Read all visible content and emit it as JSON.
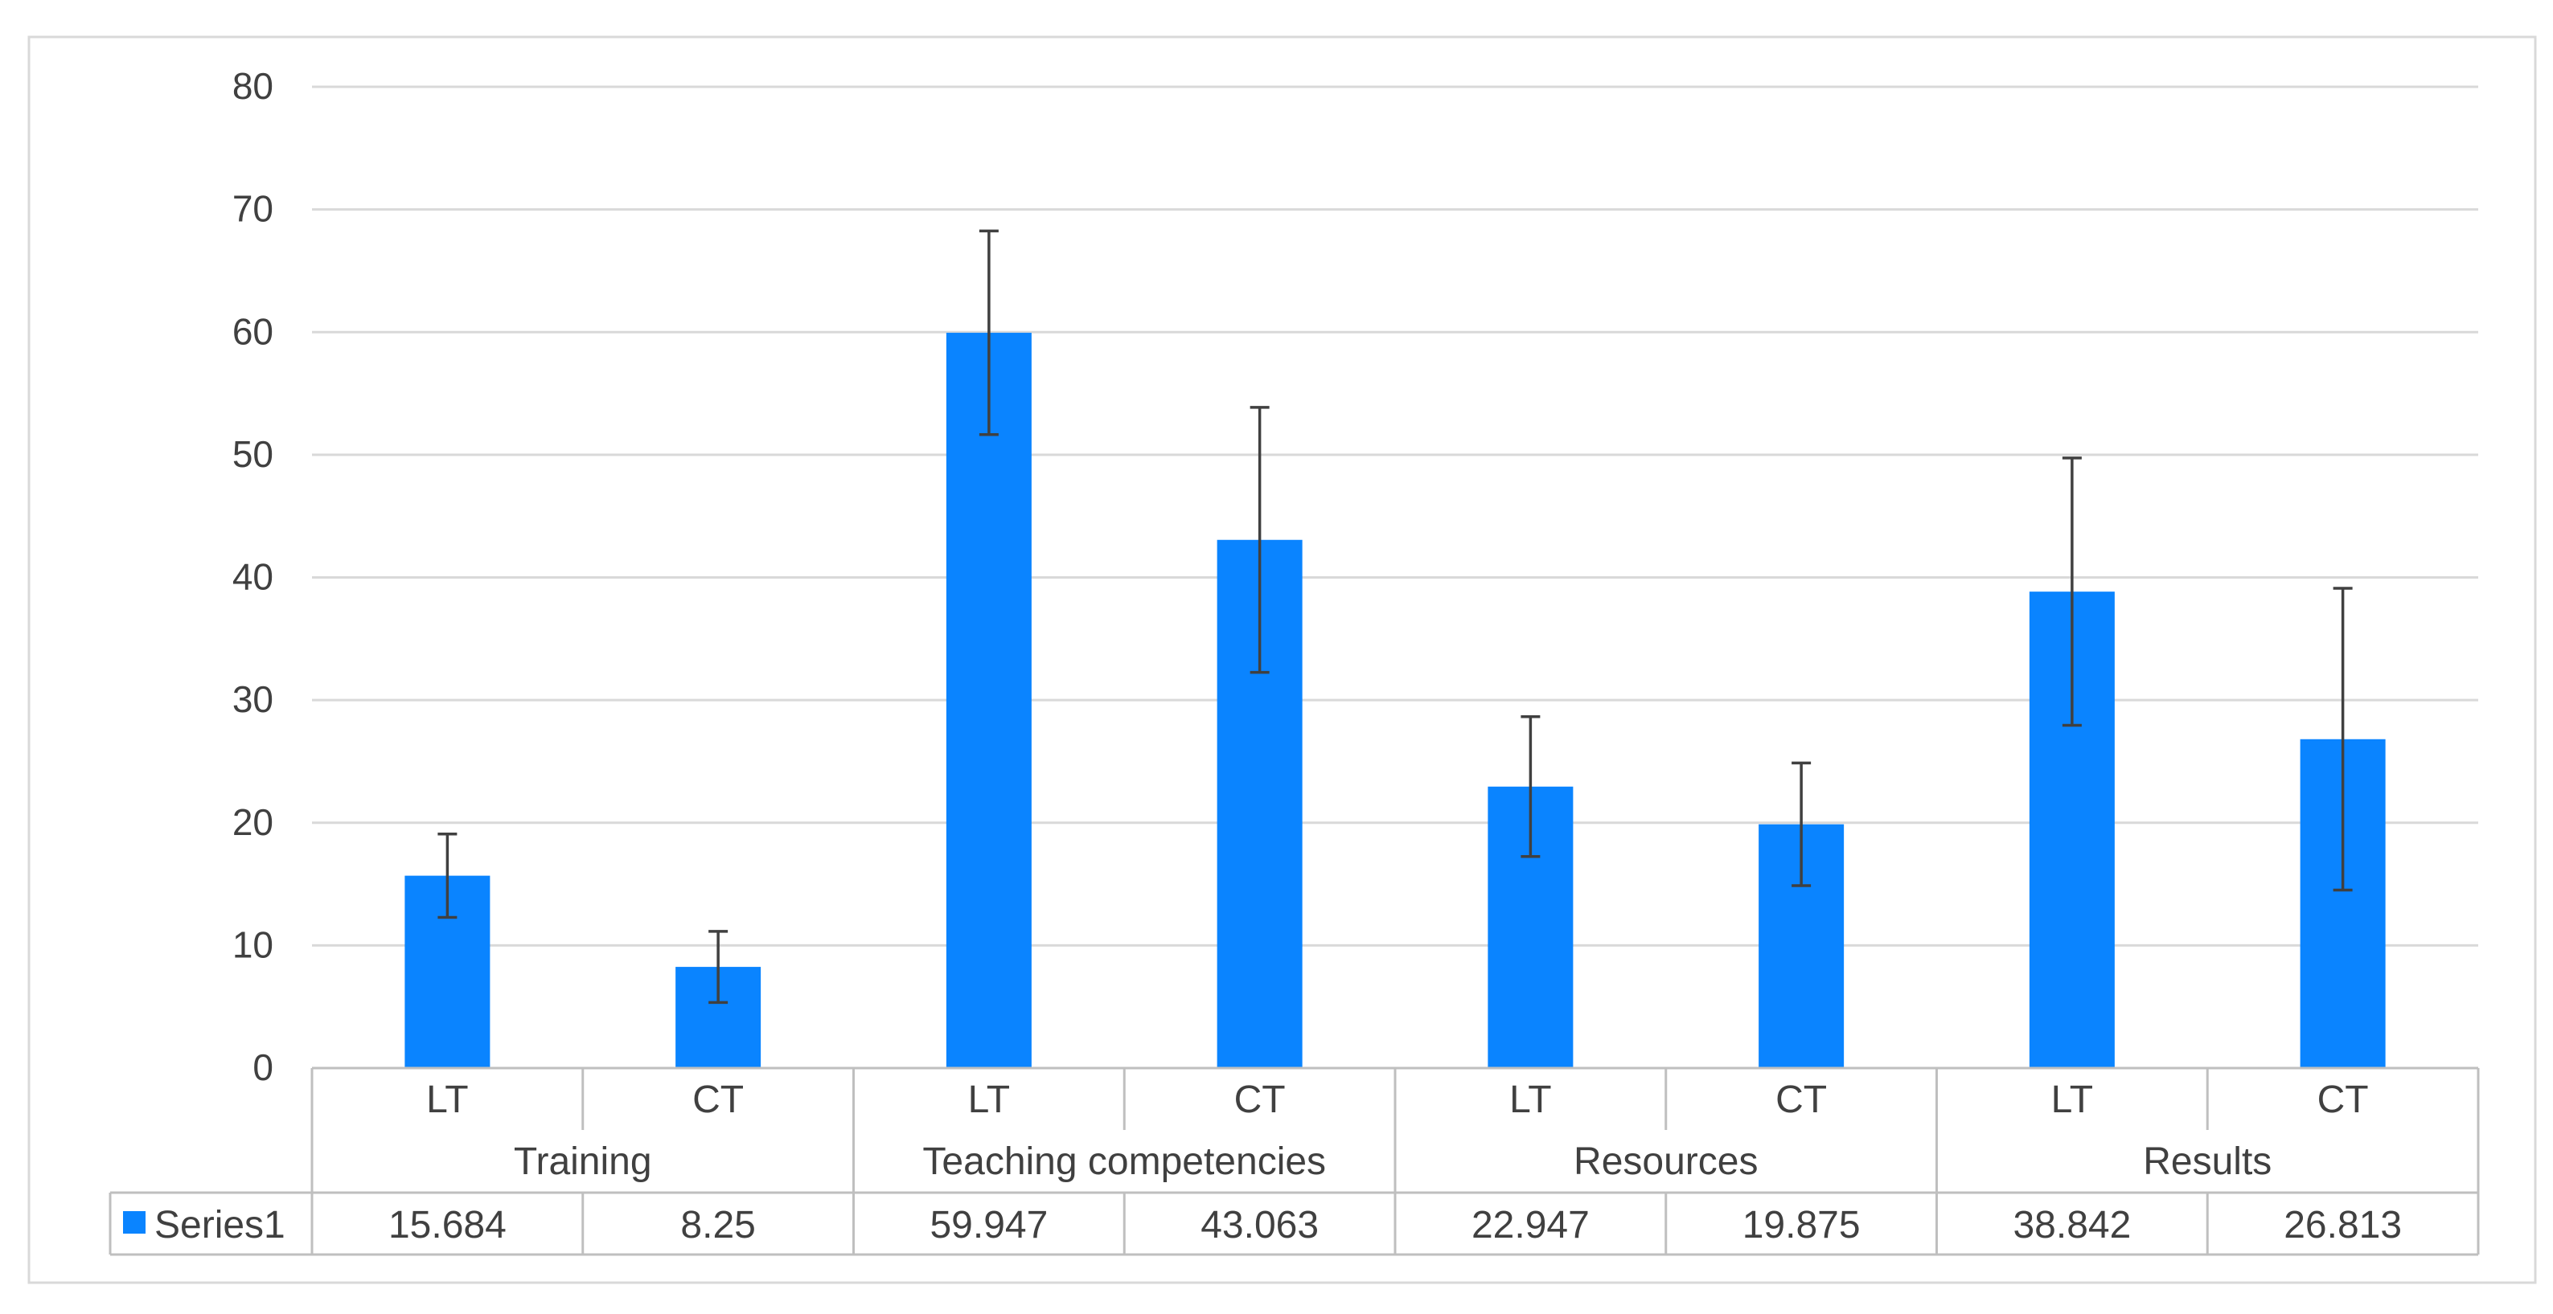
{
  "chart_data": {
    "type": "bar",
    "title": "",
    "xlabel": "",
    "ylabel": "",
    "ylim": [
      0,
      80
    ],
    "yticks": [
      0,
      10,
      20,
      30,
      40,
      50,
      60,
      70,
      80
    ],
    "grid": true,
    "legend_placement": "data-table-left",
    "groups": [
      {
        "label": "Training",
        "categories": [
          "LT",
          "CT"
        ]
      },
      {
        "label": "Teaching competencies",
        "categories": [
          "LT",
          "CT"
        ]
      },
      {
        "label": "Resources",
        "categories": [
          "LT",
          "CT"
        ]
      },
      {
        "label": "Results",
        "categories": [
          "LT",
          "CT"
        ]
      }
    ],
    "categories": [
      "LT",
      "CT",
      "LT",
      "CT",
      "LT",
      "CT",
      "LT",
      "CT"
    ],
    "series": [
      {
        "name": "Series1",
        "color": "#0A84FF",
        "values": [
          15.684,
          8.25,
          59.947,
          43.063,
          22.947,
          19.875,
          38.842,
          26.813
        ],
        "value_labels": [
          "15.684",
          "8.25",
          "59.947",
          "43.063",
          "22.947",
          "19.875",
          "38.842",
          "26.813"
        ],
        "error_bars": [
          3.4,
          2.9,
          8.3,
          10.8,
          5.7,
          5.0,
          10.9,
          12.3
        ]
      }
    ]
  },
  "colors": {
    "bar": "#0A84FF",
    "error_bar": "#404040",
    "grid": "#D9D9D9",
    "axis": "#BFBFBF",
    "text": "#404040",
    "frame": "#D9D9D9"
  }
}
